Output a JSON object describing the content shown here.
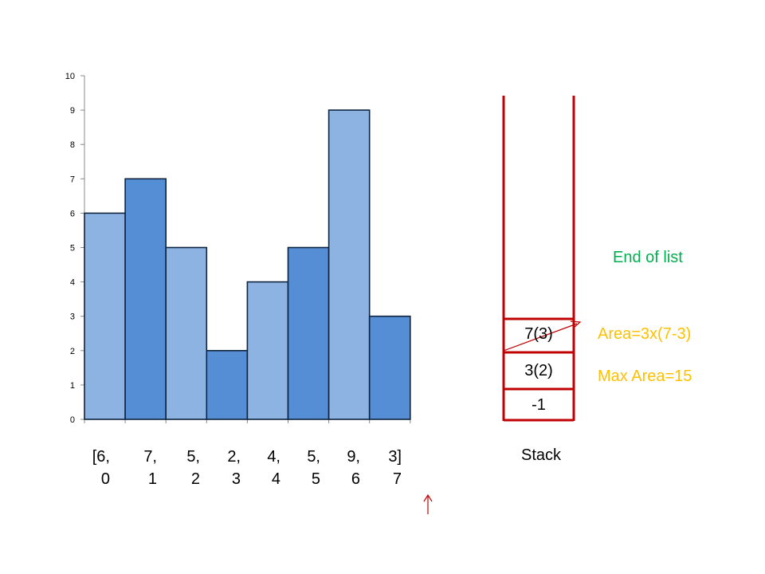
{
  "chart_data": {
    "type": "bar",
    "values": [
      6,
      7,
      5,
      2,
      4,
      5,
      9,
      3
    ],
    "ylim": [
      0,
      10
    ],
    "yticks": [
      "0",
      "1",
      "2",
      "3",
      "4",
      "5",
      "6",
      "7",
      "8",
      "9",
      "10"
    ],
    "colors": [
      "#8db3e2",
      "#558ed5",
      "#8db3e2",
      "#558ed5",
      "#8db3e2",
      "#558ed5",
      "#8db3e2",
      "#558ed5"
    ],
    "grid": false
  },
  "array_labels": [
    {
      "value": "[6,",
      "index": "0"
    },
    {
      "value": "7,",
      "index": "1"
    },
    {
      "value": "5,",
      "index": "2"
    },
    {
      "value": "2,",
      "index": "3"
    },
    {
      "value": "4,",
      "index": "4"
    },
    {
      "value": "5,",
      "index": "5"
    },
    {
      "value": "9,",
      "index": "6"
    },
    {
      "value": "3]",
      "index": "7"
    }
  ],
  "pointer_icon": "up-arrow-icon",
  "stack": {
    "label": "Stack",
    "cells": [
      "7(3)",
      "3(2)",
      "-1"
    ],
    "color": "#c00000"
  },
  "notes": {
    "end_of_list": "End of list",
    "area": "Area=3x(7-3)",
    "max_area": "Max Area=15",
    "end_color": "#00b050",
    "area_color": "#ffc000"
  }
}
